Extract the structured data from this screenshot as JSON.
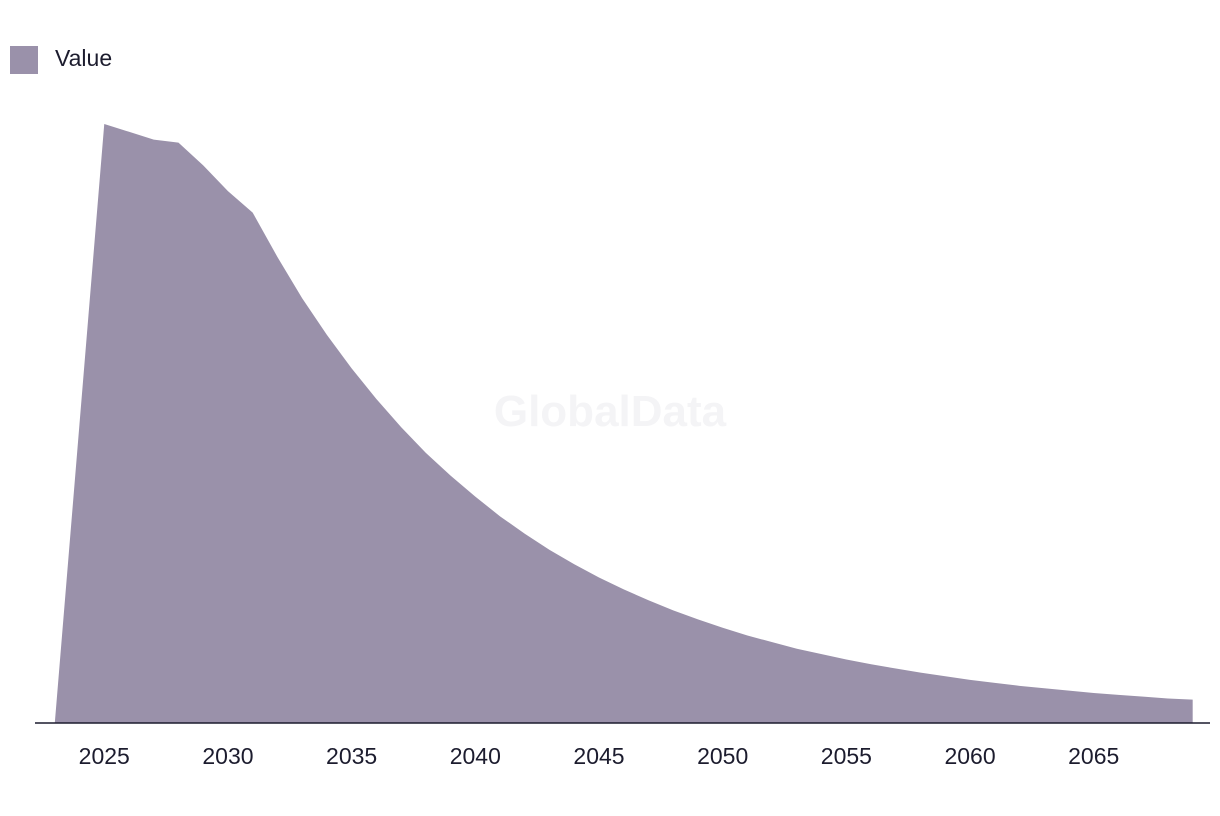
{
  "watermark": "GlobalData",
  "legend": {
    "label": "Value"
  },
  "colors": {
    "area": "#9a91aa",
    "axis": "#1c1c2e",
    "text": "#1c1c2e",
    "watermark": "#f4f4f6"
  },
  "chart_data": {
    "type": "area",
    "title": "",
    "xlabel": "",
    "ylabel": "",
    "legend": "top-left",
    "grid": false,
    "xlim": [
      2022.2,
      2069.7
    ],
    "ylim": [
      0,
      100
    ],
    "x_ticks": [
      2025,
      2030,
      2035,
      2040,
      2045,
      2050,
      2055,
      2060,
      2065
    ],
    "series": [
      {
        "name": "Value",
        "x": [
          2023,
          2024,
          2025,
          2026,
          2027,
          2028,
          2029,
          2030,
          2031,
          2032,
          2033,
          2034,
          2035,
          2036,
          2037,
          2038,
          2039,
          2040,
          2041,
          2042,
          2043,
          2044,
          2045,
          2046,
          2047,
          2048,
          2049,
          2050,
          2051,
          2052,
          2053,
          2054,
          2055,
          2056,
          2057,
          2058,
          2059,
          2060,
          2061,
          2062,
          2063,
          2064,
          2065,
          2066,
          2067,
          2068,
          2069
        ],
        "values": [
          0,
          50,
          100,
          98.7,
          97.4,
          96.9,
          93.1,
          88.8,
          85.2,
          77.8,
          70.9,
          64.8,
          59.2,
          54.1,
          49.4,
          45.1,
          41.3,
          37.8,
          34.5,
          31.6,
          28.9,
          26.5,
          24.3,
          22.3,
          20.5,
          18.8,
          17.3,
          15.9,
          14.6,
          13.5,
          12.4,
          11.5,
          10.6,
          9.8,
          9.1,
          8.4,
          7.8,
          7.2,
          6.7,
          6.2,
          5.8,
          5.4,
          5,
          4.7,
          4.4,
          4.1,
          3.9
        ]
      }
    ]
  }
}
